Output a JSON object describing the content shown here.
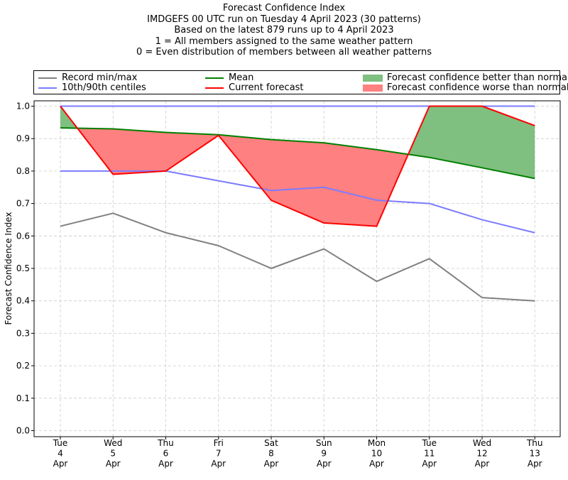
{
  "titles": [
    "Forecast Confidence Index",
    "IMDGEFS 00 UTC run on Tuesday 4 April 2023 (30 patterns)",
    "Based on the latest 879 runs up to 4 April 2023",
    "1 = All members assigned to the same weather pattern",
    "0 = Even distribution of members between all weather patterns"
  ],
  "legend": {
    "record": "Record min/max",
    "centiles": "10th/90th centiles",
    "mean": "Mean",
    "current": "Current forecast",
    "better": "Forecast confidence better than normal",
    "worse": "Forecast confidence worse than normal"
  },
  "colors": {
    "record": "#808080",
    "centiles": "#7b7bff",
    "mean": "#008000",
    "current": "#ff0000",
    "better_fill": "#7fbf7f",
    "worse_fill": "#ff8080",
    "grid": "#cccccc"
  },
  "chart_data": {
    "type": "line",
    "ylabel": "Forecast Confidence Index",
    "ylim": [
      0,
      1.0
    ],
    "yticks": [
      "0.0",
      "0.1",
      "0.2",
      "0.3",
      "0.4",
      "0.5",
      "0.6",
      "0.7",
      "0.8",
      "0.9",
      "1.0"
    ],
    "grid": true,
    "legend_position": "top",
    "x_labels": [
      [
        "Tue",
        "4",
        "Apr"
      ],
      [
        "Wed",
        "5",
        "Apr"
      ],
      [
        "Thu",
        "6",
        "Apr"
      ],
      [
        "Fri",
        "7",
        "Apr"
      ],
      [
        "Sat",
        "8",
        "Apr"
      ],
      [
        "Sun",
        "9",
        "Apr"
      ],
      [
        "Mon",
        "10",
        "Apr"
      ],
      [
        "Tue",
        "11",
        "Apr"
      ],
      [
        "Wed",
        "12",
        "Apr"
      ],
      [
        "Thu",
        "13",
        "Apr"
      ]
    ],
    "series": [
      {
        "name": "Record min/max",
        "key": "record_max",
        "values": [
          1.0,
          1.0,
          1.0,
          1.0,
          1.0,
          1.0,
          1.0,
          1.0,
          1.0,
          1.0
        ]
      },
      {
        "name": "Record min/max",
        "key": "record_min",
        "values": [
          0.63,
          0.67,
          0.61,
          0.57,
          0.5,
          0.56,
          0.46,
          0.53,
          0.41,
          0.4
        ]
      },
      {
        "name": "10th/90th centiles",
        "key": "p90",
        "values": [
          1.0,
          1.0,
          1.0,
          1.0,
          1.0,
          1.0,
          1.0,
          1.0,
          1.0,
          1.0
        ]
      },
      {
        "name": "10th/90th centiles",
        "key": "p10",
        "values": [
          0.8,
          0.8,
          0.8,
          0.77,
          0.74,
          0.75,
          0.71,
          0.7,
          0.65,
          0.61
        ]
      },
      {
        "name": "Mean",
        "key": "mean",
        "values": [
          0.933,
          0.93,
          0.919,
          0.912,
          0.897,
          0.887,
          0.866,
          0.842,
          0.81,
          0.777
        ]
      },
      {
        "name": "Current forecast",
        "key": "current",
        "values": [
          1.0,
          0.79,
          0.8,
          0.91,
          0.71,
          0.64,
          0.63,
          1.0,
          1.0,
          0.94
        ]
      }
    ]
  }
}
